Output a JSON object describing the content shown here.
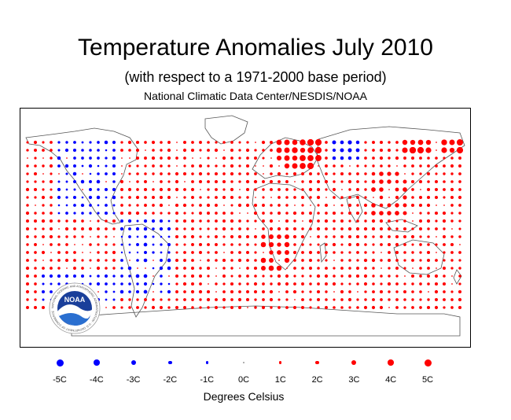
{
  "header": {
    "title": "Temperature Anomalies July 2010",
    "subtitle": "(with respect to a 1971-2000 base period)",
    "source": "National Climatic Data Center/NESDIS/NOAA"
  },
  "logo": {
    "text": "NOAA",
    "ring_text": "NATIONAL OCEANIC AND ATMOSPHERIC ADMINISTRATION · U.S. DEPARTMENT OF COMMERCE"
  },
  "colors": {
    "warm": "#ff0000",
    "cold": "#0000ff",
    "coast": "#555555"
  },
  "legend": {
    "items": [
      {
        "label": "-5C",
        "value": -5
      },
      {
        "label": "-4C",
        "value": -4
      },
      {
        "label": "-3C",
        "value": -3
      },
      {
        "label": "-2C",
        "value": -2
      },
      {
        "label": "-1C",
        "value": -1
      },
      {
        "label": "0C",
        "value": 0
      },
      {
        "label": "1C",
        "value": 1
      },
      {
        "label": "2C",
        "value": 2
      },
      {
        "label": "3C",
        "value": 3
      },
      {
        "label": "4C",
        "value": 4
      },
      {
        "label": "5C",
        "value": 5
      }
    ],
    "units": "Degrees Celsius"
  }
}
